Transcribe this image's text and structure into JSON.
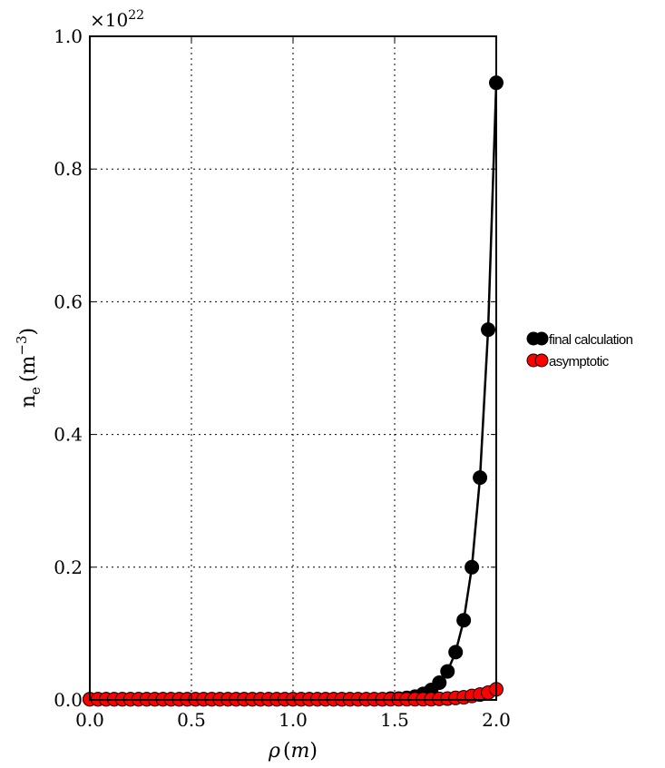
{
  "chart_data": {
    "type": "line",
    "xlabel_var": "ρ",
    "xlabel_unit": "m",
    "ylabel_var": "n",
    "ylabel_sub": "e",
    "ylabel_unit": "m",
    "ylabel_exp": "−3",
    "y_multiplier_base": "×10",
    "y_multiplier_exp": "22",
    "xlim": [
      0.0,
      2.0
    ],
    "ylim": [
      0.0,
      1.0
    ],
    "x_ticks": [
      "0.0",
      "0.5",
      "1.0",
      "1.5",
      "2.0"
    ],
    "y_ticks": [
      "0.0",
      "0.2",
      "0.4",
      "0.6",
      "0.8",
      "1.0"
    ],
    "grid": true,
    "legend_placement": "right, outside plot area",
    "series": [
      {
        "name": "final calculation",
        "color": "#000000",
        "line": true,
        "x": [
          0.0,
          0.04,
          0.08,
          0.12,
          0.16,
          0.2,
          0.24,
          0.28,
          0.32,
          0.36,
          0.4,
          0.44,
          0.48,
          0.52,
          0.56,
          0.6,
          0.64,
          0.68,
          0.72,
          0.76,
          0.8,
          0.84,
          0.88,
          0.92,
          0.96,
          1.0,
          1.04,
          1.08,
          1.12,
          1.16,
          1.2,
          1.24,
          1.28,
          1.32,
          1.36,
          1.4,
          1.44,
          1.48,
          1.52,
          1.56,
          1.6,
          1.64,
          1.68,
          1.72,
          1.76,
          1.8,
          1.84,
          1.88,
          1.92,
          1.96,
          2.0
        ],
        "y": [
          0.001,
          0.001,
          0.001,
          0.001,
          0.001,
          0.001,
          0.001,
          0.001,
          0.001,
          0.001,
          0.001,
          0.001,
          0.001,
          0.001,
          0.001,
          0.001,
          0.001,
          0.001,
          0.001,
          0.001,
          0.001,
          0.001,
          0.001,
          0.001,
          0.001,
          0.001,
          0.001,
          0.001,
          0.001,
          0.001,
          0.001,
          0.001,
          0.001,
          0.001,
          0.001,
          0.001,
          0.001,
          0.002,
          0.002,
          0.003,
          0.005,
          0.009,
          0.015,
          0.026,
          0.043,
          0.072,
          0.12,
          0.2,
          0.335,
          0.558,
          0.93
        ]
      },
      {
        "name": "asymptotic",
        "color": "#ff0000",
        "line": false,
        "x": [
          0.0,
          0.04,
          0.08,
          0.12,
          0.16,
          0.2,
          0.24,
          0.28,
          0.32,
          0.36,
          0.4,
          0.44,
          0.48,
          0.52,
          0.56,
          0.6,
          0.64,
          0.68,
          0.72,
          0.76,
          0.8,
          0.84,
          0.88,
          0.92,
          0.96,
          1.0,
          1.04,
          1.08,
          1.12,
          1.16,
          1.2,
          1.24,
          1.28,
          1.32,
          1.36,
          1.4,
          1.44,
          1.48,
          1.52,
          1.56,
          1.6,
          1.64,
          1.68,
          1.72,
          1.76,
          1.8,
          1.84,
          1.88,
          1.92,
          1.96,
          2.0
        ],
        "y": [
          0.001,
          0.001,
          0.001,
          0.001,
          0.001,
          0.001,
          0.001,
          0.001,
          0.001,
          0.001,
          0.001,
          0.001,
          0.001,
          0.001,
          0.001,
          0.001,
          0.001,
          0.001,
          0.001,
          0.001,
          0.001,
          0.001,
          0.001,
          0.001,
          0.001,
          0.001,
          0.001,
          0.001,
          0.001,
          0.001,
          0.001,
          0.001,
          0.001,
          0.001,
          0.001,
          0.001,
          0.001,
          0.001,
          0.001,
          0.001,
          0.001,
          0.001,
          0.001,
          0.0015,
          0.002,
          0.003,
          0.004,
          0.006,
          0.008,
          0.011,
          0.016
        ]
      }
    ]
  }
}
